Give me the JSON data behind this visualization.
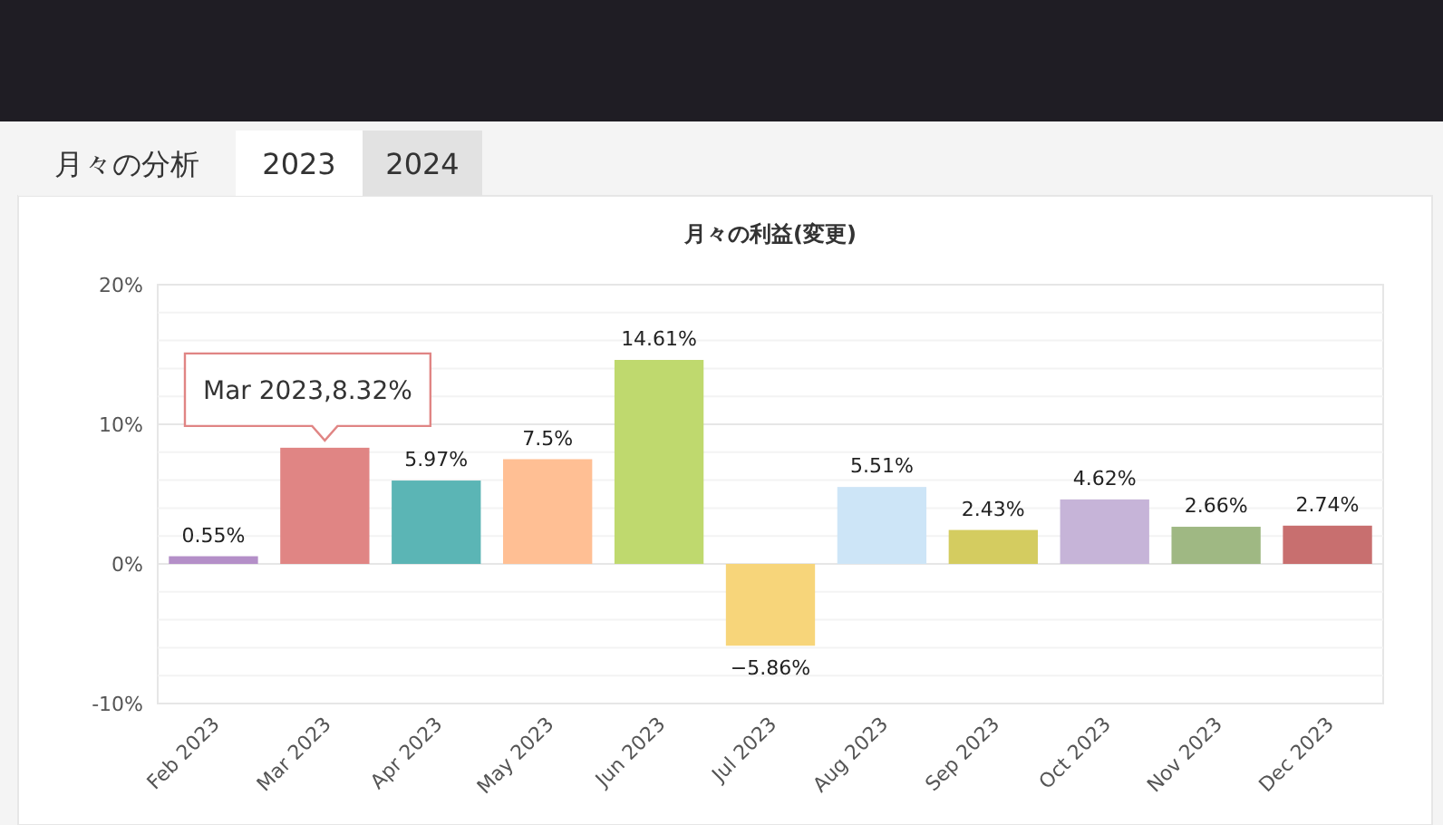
{
  "chart_data": {
    "type": "bar",
    "title": "月々の利益(変更)",
    "categories": [
      "Feb 2023",
      "Mar 2023",
      "Apr 2023",
      "May 2023",
      "Jun 2023",
      "Jul 2023",
      "Aug 2023",
      "Sep 2023",
      "Oct 2023",
      "Nov 2023",
      "Dec 2023"
    ],
    "values": [
      0.55,
      8.32,
      5.97,
      7.5,
      14.61,
      -5.86,
      5.51,
      2.43,
      4.62,
      2.66,
      2.74
    ],
    "colors": [
      "#b48fc8",
      "#e08584",
      "#5bb5b5",
      "#ffbf94",
      "#bfd96e",
      "#f7d57a",
      "#cde5f7",
      "#d4cc60",
      "#c6b4d8",
      "#9fb883",
      "#c86f6f"
    ],
    "value_labels": [
      "0.55%",
      null,
      "5.97%",
      "7.5%",
      "14.61%",
      "−5.86%",
      "5.51%",
      "2.43%",
      "4.62%",
      "2.66%",
      "2.74%"
    ],
    "ylim": [
      -10,
      20
    ],
    "yticks": [
      {
        "value": -10,
        "label": "-10%"
      },
      {
        "value": 0,
        "label": "0%"
      },
      {
        "value": 10,
        "label": "10%"
      },
      {
        "value": 20,
        "label": "20%"
      }
    ],
    "grid": true,
    "annotations": [
      "月々の分析",
      "2023",
      "2024",
      {
        "text": "Mar 2023,8.32%",
        "x": "Mar 2023",
        "y": 8.32
      }
    ]
  }
}
